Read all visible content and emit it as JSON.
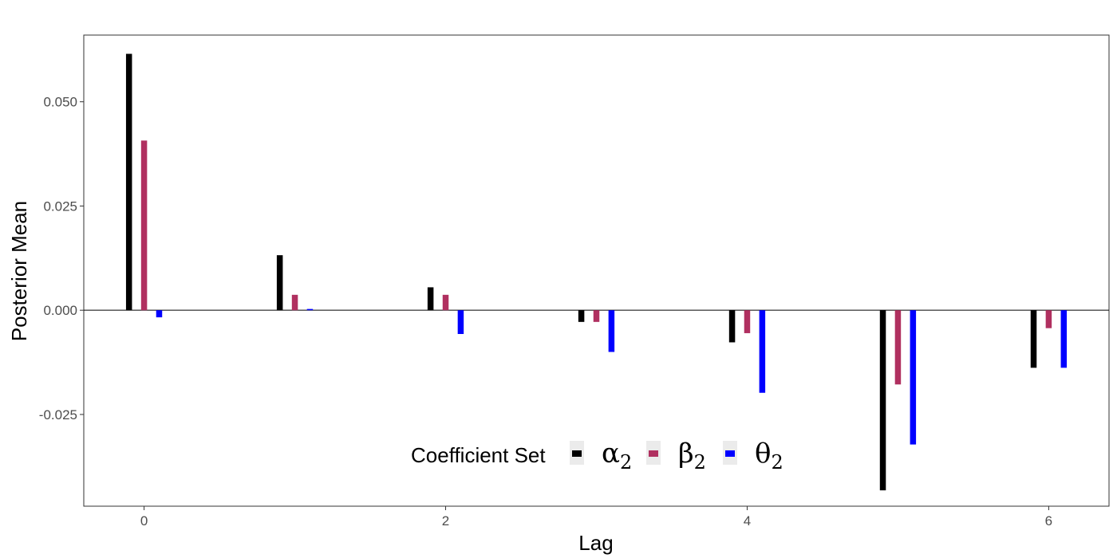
{
  "chart_data": {
    "type": "bar",
    "xlabel": "Lag",
    "ylabel": "Posterior Mean",
    "x": [
      0,
      1,
      2,
      3,
      4,
      5,
      6
    ],
    "x_ticks": [
      0,
      2,
      4,
      6
    ],
    "x_tick_labels": [
      "0",
      "2",
      "4",
      "6"
    ],
    "xlim": [
      -0.4,
      6.4
    ],
    "y_ticks": [
      -0.025,
      0,
      0.025,
      0.05
    ],
    "y_tick_labels": [
      "-0.025",
      "0.000",
      "0.025",
      "0.050"
    ],
    "ylim": [
      -0.047,
      0.066
    ],
    "grid": false,
    "zero_line": true,
    "legend": {
      "title": "Coefficient Set",
      "position": "bottom-center-inside"
    },
    "series": [
      {
        "name": "α2",
        "symbol": "α",
        "subscript": "2",
        "color": "#000000",
        "values": [
          0.0615,
          0.0132,
          0.0055,
          -0.0028,
          -0.0077,
          -0.0432,
          -0.0138
        ]
      },
      {
        "name": "β2",
        "symbol": "β",
        "subscript": "2",
        "color": "#b03060",
        "values": [
          0.0407,
          0.0037,
          0.0037,
          -0.0028,
          -0.0055,
          -0.0178,
          -0.0043
        ]
      },
      {
        "name": "θ2",
        "symbol": "θ",
        "subscript": "2",
        "color": "#0000ff",
        "values": [
          -0.0017,
          0.0003,
          -0.0057,
          -0.01,
          -0.0198,
          -0.0322,
          -0.0138
        ]
      }
    ]
  }
}
